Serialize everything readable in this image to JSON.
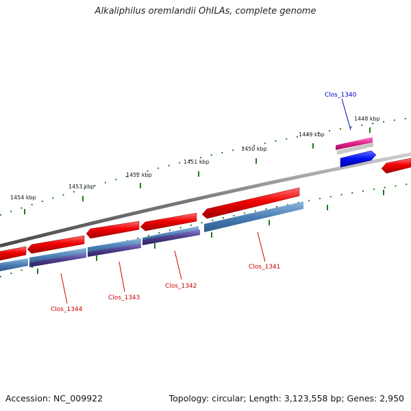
{
  "title": "Alkaliphilus oremlandii OhILAs, complete genome",
  "footer": {
    "accession": "Accession: NC_009922",
    "summary": "Topology: circular; Length: 3,123,558 bp; Genes: 2,950"
  },
  "scale_labels": [
    "1454 kbp",
    "1453 kbp",
    "1452 kbp",
    "1451 kbp",
    "1450 kbp",
    "1449 kbp",
    "1448 kbp"
  ],
  "gene_labels": [
    {
      "text": "Clos_1340",
      "color": "#0000cc"
    },
    {
      "text": "Clos_1341",
      "color": "#cc0000"
    },
    {
      "text": "Clos_1342",
      "color": "#cc0000"
    },
    {
      "text": "Clos_1343",
      "color": "#cc0000"
    },
    {
      "text": "Clos_1344",
      "color": "#cc0000"
    }
  ],
  "colors": {
    "cds": "#e00000",
    "blast_blue": "#4a7fb5",
    "blast_purple": "#4a3e8c",
    "backbone": "#7a7a7a",
    "ticks": "#1a7a1a",
    "clos_1340_blue": "#0000ee",
    "clos_1340_pink": "#e0208a"
  }
}
